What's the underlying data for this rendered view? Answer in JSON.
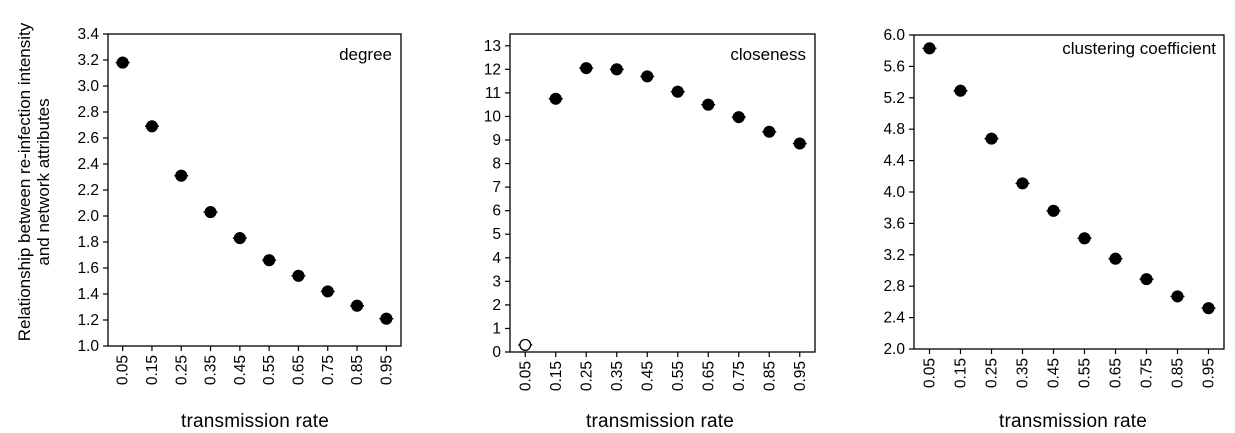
{
  "figure": {
    "ylabel_lines": [
      "Relationship between re-infection intensity",
      "and network attributes"
    ]
  },
  "chart_data": [
    {
      "type": "scatter",
      "label": "degree",
      "xlabel": "transmission rate",
      "ylabel": "Relationship between re-infection intensity and network attributes",
      "categories": [
        "0.05",
        "0.15",
        "0.25",
        "0.35",
        "0.45",
        "0.55",
        "0.65",
        "0.75",
        "0.85",
        "0.95"
      ],
      "values": [
        3.18,
        2.69,
        2.31,
        2.03,
        1.83,
        1.66,
        1.54,
        1.42,
        1.31,
        1.21
      ],
      "ylim": [
        1.0,
        3.4
      ],
      "yticks": [
        "1.0",
        "1.2",
        "1.4",
        "1.6",
        "1.8",
        "2.0",
        "2.2",
        "2.4",
        "2.6",
        "2.8",
        "3.0",
        "3.2",
        "3.4"
      ],
      "open_markers": [],
      "grid": false,
      "legend": "none"
    },
    {
      "type": "scatter",
      "label": "closeness",
      "xlabel": "transmission rate",
      "categories": [
        "0.05",
        "0.15",
        "0.25",
        "0.35",
        "0.45",
        "0.55",
        "0.65",
        "0.75",
        "0.85",
        "0.95"
      ],
      "values": [
        0.3,
        10.75,
        12.05,
        12.0,
        11.7,
        11.05,
        10.5,
        9.97,
        9.35,
        8.85
      ],
      "ylim": [
        0,
        13.5
      ],
      "yticks": [
        "0",
        "1",
        "2",
        "3",
        "4",
        "5",
        "6",
        "7",
        "8",
        "9",
        "10",
        "11",
        "12",
        "13"
      ],
      "open_markers": [
        0
      ],
      "grid": false,
      "legend": "none"
    },
    {
      "type": "scatter",
      "label": "clustering coefficient",
      "xlabel": "transmission rate",
      "categories": [
        "0.05",
        "0.15",
        "0.25",
        "0.35",
        "0.45",
        "0.55",
        "0.65",
        "0.75",
        "0.85",
        "0.95"
      ],
      "values": [
        5.83,
        5.29,
        4.68,
        4.11,
        3.76,
        3.41,
        3.15,
        2.89,
        2.67,
        2.52
      ],
      "ylim": [
        2.0,
        6.0
      ],
      "yticks": [
        "2.0",
        "2.4",
        "2.8",
        "3.2",
        "3.6",
        "4.0",
        "4.4",
        "4.8",
        "5.2",
        "5.6",
        "6.0"
      ],
      "open_markers": [],
      "grid": false,
      "legend": "none"
    }
  ]
}
